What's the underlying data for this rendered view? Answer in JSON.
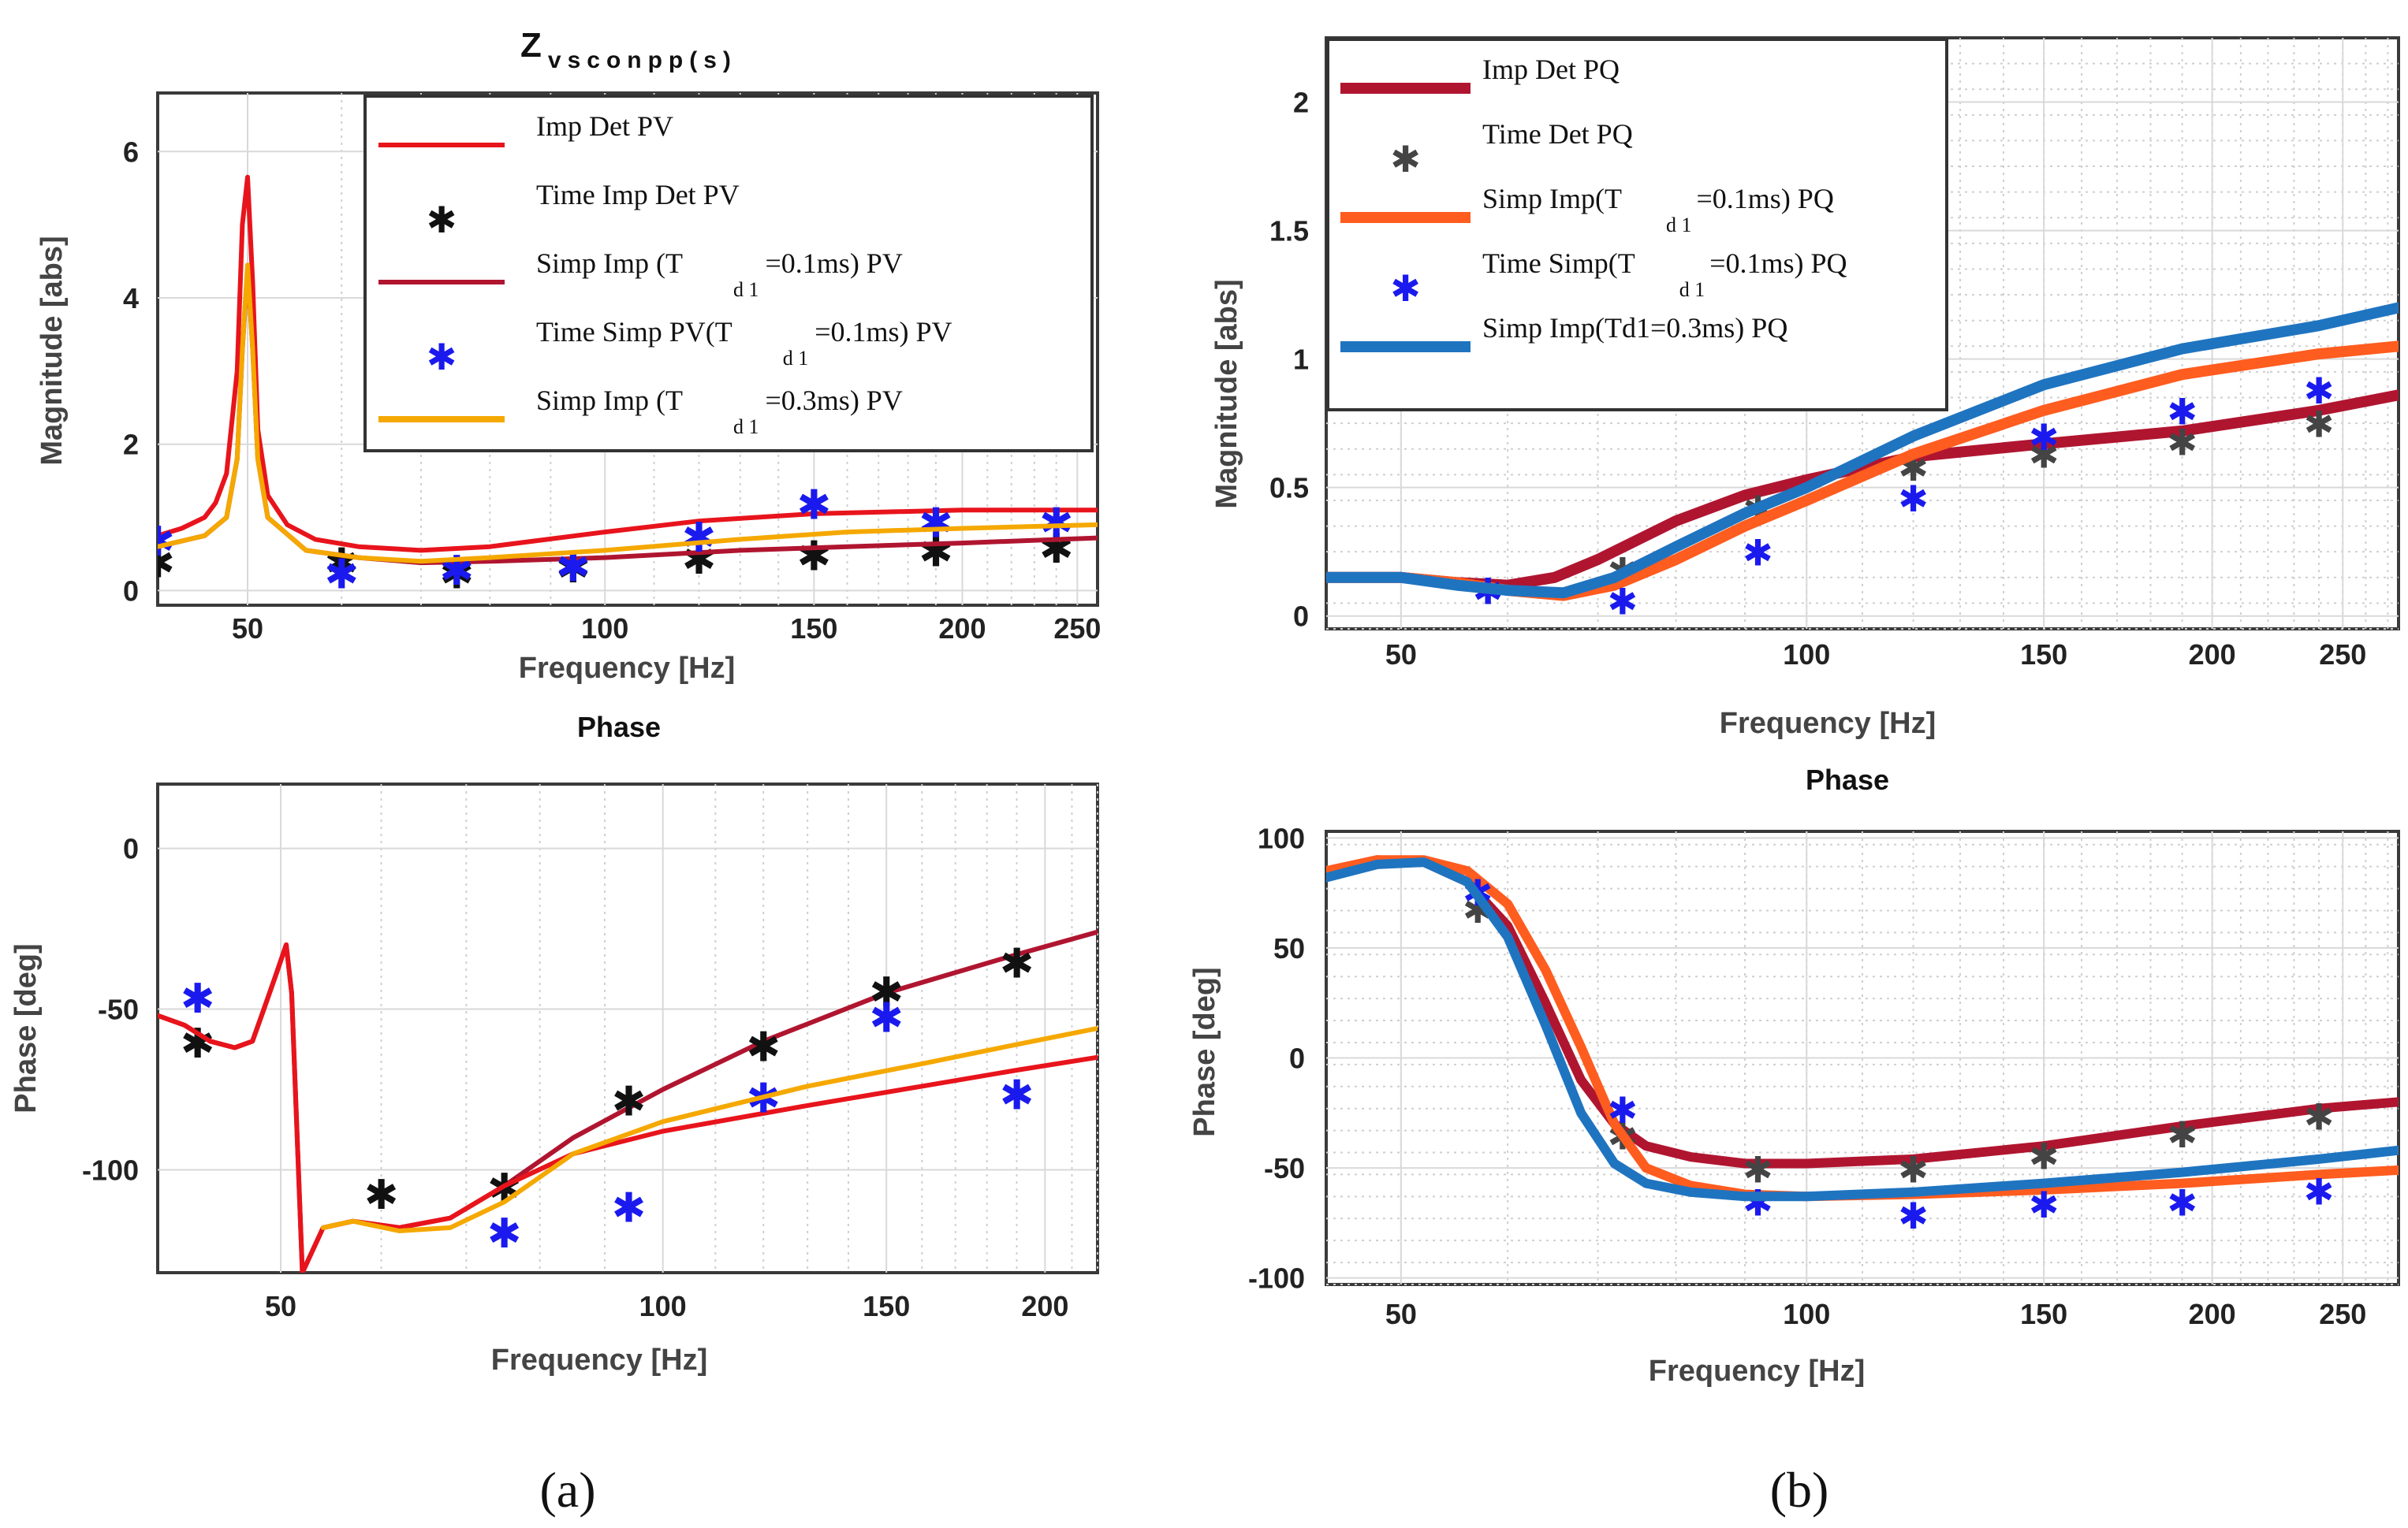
{
  "figure": {
    "panel_a_label": "(a)",
    "panel_b_label": "(b)"
  },
  "colors": {
    "red": "#e8141c",
    "darkred": "#b01530",
    "orange": "#ff5c1f",
    "yellow": "#f5a800",
    "blue": "#1f74c0",
    "marker_black": "#111111",
    "marker_gray": "#444444",
    "marker_blue": "#1a1aee"
  },
  "chart_data": [
    {
      "id": "a_mag",
      "type": "line",
      "title_main": "Z",
      "title_sub": "vsconpp(s)",
      "xlabel": "Frequency [Hz]",
      "ylabel": "Magnitude [abs]",
      "xscale": "log",
      "xlim": [
        42,
        260
      ],
      "ylim": [
        -0.2,
        6.8
      ],
      "xticks": [
        50,
        100,
        150,
        200,
        250
      ],
      "yticks": [
        0,
        2,
        4,
        6
      ],
      "legend": {
        "placement": "top-right",
        "entries": [
          {
            "text": "Imp Det  PV",
            "sub": "",
            "after": "",
            "series": "Imp Det PV (a)"
          },
          {
            "text": "Time Imp Det  PV",
            "sub": "",
            "after": "",
            "series": "Time Imp Det PV"
          },
          {
            "text": "Simp Imp (T",
            "sub": "d 1",
            "after": "=0.1ms) PV",
            "series": "Simp Imp (Td1=0.1ms) PV"
          },
          {
            "text": "Time Simp  PV(T",
            "sub": "d 1",
            "after": "=0.1ms) PV",
            "series": "Time Simp PV(Td1=0.1ms) PV"
          },
          {
            "text": "Simp Imp (T",
            "sub": "d 1",
            "after": "=0.3ms) PV",
            "series": "Simp Imp (Td1=0.3ms) PV"
          }
        ]
      },
      "series": [
        {
          "name": "Imp Det PV (a)",
          "kind": "line",
          "color": "red",
          "x": [
            42,
            44,
            46,
            47,
            48,
            49,
            49.5,
            50,
            50.5,
            51,
            52,
            54,
            57,
            62,
            70,
            80,
            100,
            120,
            150,
            200,
            260
          ],
          "y": [
            0.75,
            0.85,
            1.0,
            1.2,
            1.6,
            3.0,
            5.0,
            5.65,
            4.2,
            2.2,
            1.3,
            0.9,
            0.7,
            0.6,
            0.55,
            0.6,
            0.8,
            0.95,
            1.05,
            1.1,
            1.1
          ]
        },
        {
          "name": "Time Imp Det PV",
          "kind": "marker",
          "color": "marker_black",
          "x": [
            42,
            60,
            75,
            94,
            120,
            150,
            190,
            240
          ],
          "y": [
            0.45,
            0.45,
            0.3,
            0.38,
            0.5,
            0.55,
            0.6,
            0.65
          ]
        },
        {
          "name": "Simp Imp (Td1=0.1ms) PV",
          "kind": "line",
          "color": "darkred",
          "x": [
            42,
            46,
            48,
            49,
            49.5,
            50,
            50.5,
            51,
            52,
            56,
            62,
            70,
            80,
            100,
            130,
            160,
            200,
            260
          ],
          "y": [
            0.6,
            0.75,
            1.0,
            1.8,
            3.3,
            4.4,
            3.3,
            1.8,
            1.0,
            0.55,
            0.45,
            0.38,
            0.4,
            0.45,
            0.55,
            0.6,
            0.65,
            0.72
          ]
        },
        {
          "name": "Time Simp PV(Td1=0.1ms) PV",
          "kind": "marker",
          "color": "marker_blue",
          "x": [
            42,
            60,
            75,
            94,
            120,
            150,
            190,
            240
          ],
          "y": [
            0.75,
            0.3,
            0.35,
            0.4,
            0.8,
            1.25,
            1.0,
            1.0
          ]
        },
        {
          "name": "Simp Imp (Td1=0.3ms) PV",
          "kind": "line",
          "color": "yellow",
          "x": [
            42,
            46,
            48,
            49,
            49.5,
            50,
            50.5,
            51,
            52,
            56,
            62,
            70,
            80,
            100,
            130,
            160,
            200,
            260
          ],
          "y": [
            0.6,
            0.75,
            1.0,
            1.8,
            3.3,
            4.45,
            3.3,
            1.8,
            1.0,
            0.55,
            0.45,
            0.4,
            0.45,
            0.55,
            0.7,
            0.8,
            0.85,
            0.9
          ]
        }
      ]
    },
    {
      "id": "a_phase",
      "type": "line",
      "title": "Phase",
      "xlabel": "Frequency [Hz]",
      "ylabel": "Phase [deg]",
      "xscale": "log",
      "xlim": [
        40,
        220
      ],
      "ylim": [
        -132,
        20
      ],
      "xticks": [
        50,
        100,
        150,
        200
      ],
      "yticks": [
        0,
        -50,
        -100
      ],
      "series": [
        {
          "name": "Imp Det PV (a) phase",
          "kind": "line",
          "color": "darkred",
          "x": [
            40,
            42,
            44,
            46,
            47.5,
            48.5,
            49.5,
            50.5,
            51,
            52,
            54,
            57,
            62,
            68,
            75,
            85,
            100,
            120,
            150,
            190,
            220
          ],
          "y": [
            -52,
            -55,
            -60,
            -62,
            -60,
            -50,
            -40,
            -30,
            -45,
            -132,
            -118,
            -116,
            -118,
            -115,
            -105,
            -90,
            -75,
            -60,
            -45,
            -33,
            -26
          ]
        },
        {
          "name": "Time Imp Det PV phase",
          "kind": "marker",
          "color": "marker_black",
          "x": [
            43,
            60,
            75,
            94,
            120,
            150,
            190
          ],
          "y": [
            -59,
            -106,
            -104,
            -77,
            -60,
            -43,
            -34
          ]
        },
        {
          "name": "Simp Imp (Td1=0.1ms) PV phase",
          "kind": "line",
          "color": "red",
          "x": [
            40,
            42,
            44,
            46,
            47.5,
            48.5,
            49.5,
            50.5,
            51,
            52,
            54,
            57,
            62,
            68,
            75,
            85,
            100,
            130,
            160,
            190,
            220
          ],
          "y": [
            -52,
            -55,
            -60,
            -62,
            -60,
            -50,
            -40,
            -30,
            -45,
            -132,
            -118,
            -116,
            -118,
            -115,
            -105,
            -95,
            -88,
            -80,
            -74,
            -69,
            -65
          ]
        },
        {
          "name": "Time Simp PV(Td1=0.1ms) PV phase",
          "kind": "marker",
          "color": "marker_blue",
          "x": [
            43,
            75,
            94,
            120,
            150,
            190
          ],
          "y": [
            -45,
            -118,
            -110,
            -76,
            -51,
            -75
          ]
        },
        {
          "name": "Simp Imp (Td1=0.3ms) PV phase",
          "kind": "line",
          "color": "yellow",
          "x": [
            54,
            57,
            62,
            68,
            75,
            85,
            100,
            130,
            160,
            190,
            220
          ],
          "y": [
            -118,
            -116,
            -119,
            -118,
            -110,
            -95,
            -85,
            -74,
            -67,
            -61,
            -56
          ]
        }
      ]
    },
    {
      "id": "b_mag",
      "type": "line",
      "xlabel": "Frequency [Hz]",
      "ylabel": "Magnitude [abs]",
      "xscale": "log",
      "xlim": [
        44,
        275
      ],
      "ylim": [
        -0.05,
        2.25
      ],
      "xticks": [
        50,
        100,
        150,
        200,
        250
      ],
      "yticks": [
        0,
        0.5,
        1,
        1.5,
        2
      ],
      "legend": {
        "placement": "top-left",
        "entries": [
          {
            "text": "Imp  Det  PQ",
            "sub": "",
            "after": "",
            "series": "Imp Det PQ"
          },
          {
            "text": "Time  Det PQ",
            "sub": "",
            "after": "",
            "series": "Time Det PQ"
          },
          {
            "text": "Simp Imp(T",
            "sub": "d 1",
            "after": "=0.1ms) PQ",
            "series": "Simp Imp(Td1=0.1ms) PQ"
          },
          {
            "text": "Time  Simp(T",
            "sub": "d 1",
            "after": "=0.1ms) PQ",
            "series": "Time Simp(Td1=0.1ms) PQ"
          },
          {
            "text": "Simp Imp(Td1=0.3ms) PQ",
            "sub": "",
            "after": "",
            "series": "Simp Imp(Td1=0.3ms) PQ"
          }
        ]
      },
      "series": [
        {
          "name": "Imp Det PQ",
          "kind": "line",
          "color": "darkred",
          "x": [
            44,
            50,
            55,
            60,
            65,
            70,
            80,
            90,
            100,
            120,
            150,
            190,
            240,
            275
          ],
          "y": [
            0.15,
            0.15,
            0.13,
            0.12,
            0.15,
            0.22,
            0.37,
            0.47,
            0.53,
            0.62,
            0.67,
            0.72,
            0.8,
            0.86
          ]
        },
        {
          "name": "Time Det PQ",
          "kind": "marker",
          "color": "marker_gray",
          "x": [
            58,
            73,
            92,
            120,
            150,
            190,
            240
          ],
          "y": [
            0.12,
            0.2,
            0.44,
            0.6,
            0.65,
            0.7,
            0.77
          ]
        },
        {
          "name": "Simp Imp(Td1=0.1ms) PQ",
          "kind": "line",
          "color": "orange",
          "x": [
            44,
            50,
            55,
            60,
            66,
            72,
            80,
            90,
            100,
            120,
            150,
            190,
            240,
            275
          ],
          "y": [
            0.15,
            0.15,
            0.13,
            0.1,
            0.08,
            0.12,
            0.22,
            0.35,
            0.45,
            0.63,
            0.8,
            0.94,
            1.02,
            1.05
          ]
        },
        {
          "name": "Time Simp(Td1=0.1ms) PQ",
          "kind": "marker",
          "color": "marker_blue",
          "x": [
            58,
            73,
            92,
            120,
            150,
            190,
            240
          ],
          "y": [
            0.12,
            0.08,
            0.27,
            0.48,
            0.72,
            0.82,
            0.9
          ]
        },
        {
          "name": "Simp Imp(Td1=0.3ms) PQ",
          "kind": "line",
          "color": "blue",
          "x": [
            44,
            50,
            55,
            60,
            66,
            72,
            80,
            90,
            100,
            120,
            150,
            190,
            240,
            275
          ],
          "y": [
            0.15,
            0.15,
            0.12,
            0.1,
            0.09,
            0.15,
            0.27,
            0.4,
            0.5,
            0.7,
            0.9,
            1.04,
            1.13,
            1.2
          ]
        }
      ]
    },
    {
      "id": "b_phase",
      "type": "line",
      "title": "Phase",
      "xlabel": "Frequency [Hz]",
      "ylabel": "Phase [deg]",
      "xscale": "log",
      "xlim": [
        44,
        275
      ],
      "ylim": [
        -103,
        103
      ],
      "xticks": [
        50,
        100,
        150,
        200,
        250
      ],
      "yticks": [
        100,
        50,
        0,
        -50,
        -100
      ],
      "series": [
        {
          "name": "Imp Det PQ phase",
          "kind": "line",
          "color": "darkred",
          "x": [
            44,
            48,
            52,
            56,
            60,
            64,
            68,
            72,
            76,
            82,
            90,
            100,
            120,
            150,
            190,
            240,
            275
          ],
          "y": [
            85,
            90,
            89,
            80,
            60,
            25,
            -10,
            -30,
            -40,
            -45,
            -48,
            -48,
            -46,
            -40,
            -31,
            -23,
            -20
          ]
        },
        {
          "name": "Time Det PQ phase",
          "kind": "marker",
          "color": "marker_gray",
          "x": [
            57,
            73,
            92,
            120,
            150,
            190,
            240
          ],
          "y": [
            70,
            -33,
            -48,
            -48,
            -42,
            -32,
            -24
          ]
        },
        {
          "name": "Simp Imp(Td1=0.1ms) PQ phase",
          "kind": "line",
          "color": "orange",
          "x": [
            44,
            48,
            52,
            56,
            60,
            64,
            68,
            72,
            76,
            82,
            90,
            100,
            120,
            150,
            190,
            240,
            275
          ],
          "y": [
            85,
            90,
            90,
            85,
            70,
            40,
            5,
            -30,
            -50,
            -58,
            -62,
            -63,
            -62,
            -60,
            -57,
            -53,
            -51
          ]
        },
        {
          "name": "Time Simp(Td1=0.1ms) PQ phase",
          "kind": "marker",
          "color": "marker_blue",
          "x": [
            57,
            73,
            92,
            120,
            150,
            190,
            240
          ],
          "y": [
            78,
            -21,
            -63,
            -69,
            -64,
            -63,
            -58
          ]
        },
        {
          "name": "Simp Imp(Td1=0.3ms) PQ phase",
          "kind": "line",
          "color": "blue",
          "x": [
            44,
            48,
            52,
            56,
            60,
            64,
            68,
            72,
            76,
            82,
            90,
            100,
            120,
            150,
            190,
            240,
            275
          ],
          "y": [
            82,
            88,
            89,
            80,
            55,
            15,
            -25,
            -48,
            -57,
            -61,
            -63,
            -63,
            -61,
            -57,
            -52,
            -46,
            -42
          ]
        }
      ]
    }
  ]
}
